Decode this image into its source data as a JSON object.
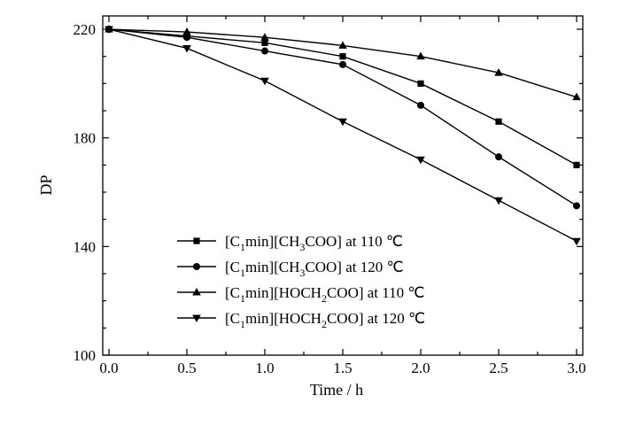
{
  "chart_data": {
    "type": "line",
    "xlabel": "Time / h",
    "ylabel": "DP",
    "xlim": [
      0.0,
      3.0
    ],
    "ylim": [
      100,
      220
    ],
    "x_ticks": [
      "0.0",
      "0.5",
      "1.0",
      "1.5",
      "2.0",
      "2.5",
      "3.0"
    ],
    "y_ticks": [
      "100",
      "140",
      "180",
      "220"
    ],
    "x": [
      0.0,
      0.5,
      1.0,
      1.5,
      2.0,
      2.5,
      3.0
    ],
    "legend_position": "lower-left",
    "grid": false,
    "series": [
      {
        "name": "[C1min][CH3COO] at 110 ℃",
        "legend": {
          "main": "[C",
          "sub1": "1",
          "mid": "min][CH",
          "sub2": "3",
          "end": "COO] at 110 ℃"
        },
        "marker": "square",
        "values": [
          220,
          217.5,
          215,
          210,
          200,
          186,
          170
        ]
      },
      {
        "name": "[C1min][CH3COO] at 120 ℃",
        "legend": {
          "main": "[C",
          "sub1": "1",
          "mid": "min][CH",
          "sub2": "3",
          "end": "COO] at 120 ℃"
        },
        "marker": "circle",
        "values": [
          220,
          217,
          212,
          207,
          192,
          173,
          155
        ]
      },
      {
        "name": "[C1min][HOCH2COO] at 110 ℃",
        "legend": {
          "main": "[C",
          "sub1": "1",
          "mid": "min][HOCH",
          "sub2": "2",
          "end": "COO] at 110 ℃"
        },
        "marker": "triangle-up",
        "values": [
          220,
          219,
          217,
          214,
          210,
          204,
          195
        ]
      },
      {
        "name": "[C1min][HOCH2COO] at 120 ℃",
        "legend": {
          "main": "[C",
          "sub1": "1",
          "mid": "min][HOCH",
          "sub2": "2",
          "end": "COO] at 120 ℃"
        },
        "marker": "triangle-down",
        "values": [
          220,
          213,
          201,
          186,
          172,
          157,
          142
        ]
      }
    ]
  }
}
